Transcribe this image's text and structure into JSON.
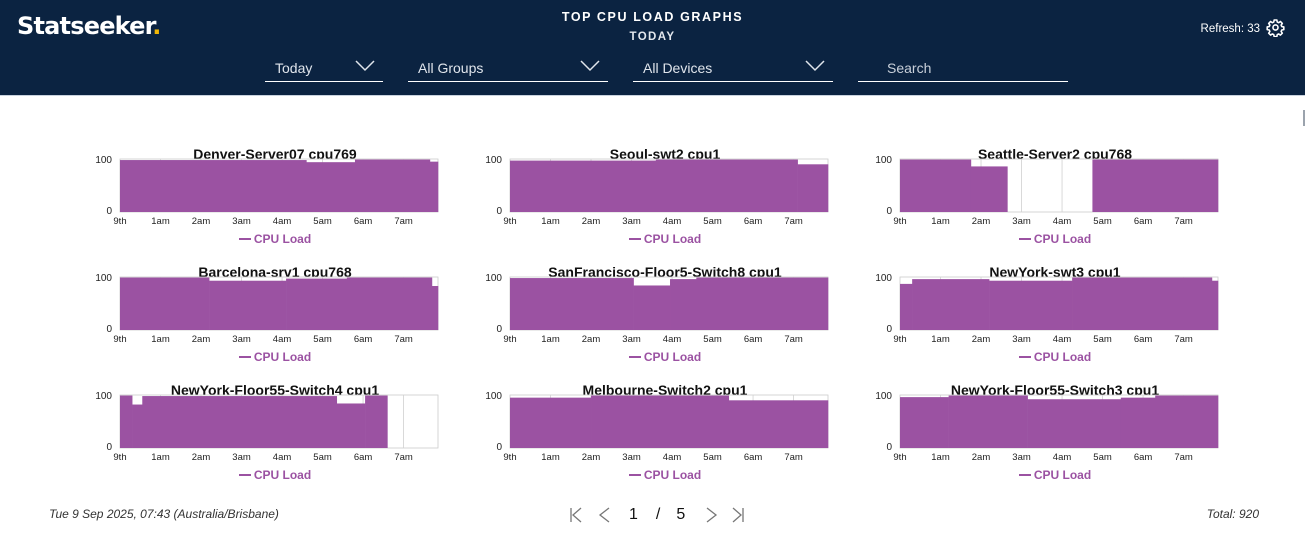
{
  "header": {
    "logo_text": "Statseeker",
    "logo_dot": ".",
    "title": "TOP CPU LOAD GRAPHS",
    "subtitle": "TODAY",
    "refresh_label": "Refresh: 33",
    "gear_icon": "gear-icon"
  },
  "filters": {
    "time_range": {
      "value": "Today",
      "icon": "chevron-down-icon"
    },
    "groups": {
      "value": "All Groups",
      "icon": "chevron-down-icon"
    },
    "devices": {
      "value": "All Devices",
      "icon": "chevron-down-icon"
    },
    "search": {
      "placeholder": "Search",
      "value": ""
    }
  },
  "colors": {
    "header_bg": "#0b2341",
    "accent_dot": "#f2b705",
    "series": "#9b52a2",
    "grid": "#d0d0d0"
  },
  "footer": {
    "timestamp": "Tue 9 Sep 2025, 07:43 (Australia/Brisbane)",
    "page_current": "1",
    "page_sep": "/",
    "page_total": "5",
    "total": "Total: 920",
    "icons": [
      "first-page-icon",
      "prev-page-icon",
      "next-page-icon",
      "last-page-icon"
    ]
  },
  "chart_data": [
    {
      "type": "area",
      "title": "Denver-Server07 cpu769",
      "legend": "CPU Load",
      "x_ticks": [
        "9th",
        "1am",
        "2am",
        "3am",
        "4am",
        "5am",
        "6am",
        "7am"
      ],
      "y_ticks": [
        "0",
        "100"
      ],
      "xlim": [
        0,
        7.85
      ],
      "ylim": [
        0,
        100
      ],
      "segments": [
        {
          "from": 0,
          "to": 4.6,
          "value": 98
        },
        {
          "from": 4.6,
          "to": 5.8,
          "value": 94
        },
        {
          "from": 5.8,
          "to": 7.65,
          "value": 99
        },
        {
          "from": 7.65,
          "to": 7.85,
          "value": 95
        }
      ]
    },
    {
      "type": "area",
      "title": "Seoul-swt2 cpu1",
      "legend": "CPU Load",
      "x_ticks": [
        "9th",
        "1am",
        "2am",
        "3am",
        "4am",
        "5am",
        "6am",
        "7am"
      ],
      "y_ticks": [
        "0",
        "100"
      ],
      "xlim": [
        0,
        7.85
      ],
      "ylim": [
        0,
        100
      ],
      "segments": [
        {
          "from": 0,
          "to": 3.6,
          "value": 97
        },
        {
          "from": 3.6,
          "to": 7.1,
          "value": 99
        },
        {
          "from": 7.1,
          "to": 7.85,
          "value": 90
        }
      ]
    },
    {
      "type": "area",
      "title": "Seattle-Server2 cpu768",
      "legend": "CPU Load",
      "x_ticks": [
        "9th",
        "1am",
        "2am",
        "3am",
        "4am",
        "5am",
        "6am",
        "7am"
      ],
      "y_ticks": [
        "0",
        "100"
      ],
      "xlim": [
        0,
        7.85
      ],
      "ylim": [
        0,
        100
      ],
      "segments": [
        {
          "from": 0,
          "to": 1.75,
          "value": 99
        },
        {
          "from": 1.75,
          "to": 2.65,
          "value": 86
        },
        {
          "from": 2.65,
          "to": 4.75,
          "value": null
        },
        {
          "from": 4.75,
          "to": 7.85,
          "value": 99
        }
      ]
    },
    {
      "type": "area",
      "title": "Barcelona-srv1 cpu768",
      "legend": "CPU Load",
      "x_ticks": [
        "9th",
        "1am",
        "2am",
        "3am",
        "4am",
        "5am",
        "6am",
        "7am"
      ],
      "y_ticks": [
        "0",
        "100"
      ],
      "xlim": [
        0,
        7.85
      ],
      "ylim": [
        0,
        100
      ],
      "segments": [
        {
          "from": 0,
          "to": 2.2,
          "value": 99
        },
        {
          "from": 2.2,
          "to": 4.1,
          "value": 93
        },
        {
          "from": 4.1,
          "to": 5.6,
          "value": 97
        },
        {
          "from": 5.6,
          "to": 7.7,
          "value": 99
        },
        {
          "from": 7.7,
          "to": 7.85,
          "value": 83
        }
      ]
    },
    {
      "type": "area",
      "title": "SanFrancisco-Floor5-Switch8 cpu1",
      "legend": "CPU Load",
      "x_ticks": [
        "9th",
        "1am",
        "2am",
        "3am",
        "4am",
        "5am",
        "6am",
        "7am"
      ],
      "y_ticks": [
        "0",
        "100"
      ],
      "xlim": [
        0,
        7.85
      ],
      "ylim": [
        0,
        100
      ],
      "segments": [
        {
          "from": 0,
          "to": 3.05,
          "value": 98
        },
        {
          "from": 3.05,
          "to": 3.95,
          "value": 84
        },
        {
          "from": 3.95,
          "to": 4.6,
          "value": 96
        },
        {
          "from": 4.6,
          "to": 7.85,
          "value": 99
        }
      ]
    },
    {
      "type": "area",
      "title": "NewYork-swt3 cpu1",
      "legend": "CPU Load",
      "x_ticks": [
        "9th",
        "1am",
        "2am",
        "3am",
        "4am",
        "5am",
        "6am",
        "7am"
      ],
      "y_ticks": [
        "0",
        "100"
      ],
      "xlim": [
        0,
        7.85
      ],
      "ylim": [
        0,
        100
      ],
      "segments": [
        {
          "from": 0,
          "to": 0.3,
          "value": 87
        },
        {
          "from": 0.3,
          "to": 2.2,
          "value": 96
        },
        {
          "from": 2.2,
          "to": 4.25,
          "value": 93
        },
        {
          "from": 4.25,
          "to": 7.7,
          "value": 99
        },
        {
          "from": 7.7,
          "to": 7.85,
          "value": 93
        }
      ]
    },
    {
      "type": "area",
      "title": "NewYork-Floor55-Switch4 cpu1",
      "legend": "CPU Load",
      "x_ticks": [
        "9th",
        "1am",
        "2am",
        "3am",
        "4am",
        "5am",
        "6am",
        "7am"
      ],
      "y_ticks": [
        "0",
        "100"
      ],
      "xlim": [
        0,
        7.85
      ],
      "ylim": [
        0,
        100
      ],
      "segments": [
        {
          "from": 0,
          "to": 0.3,
          "value": 99
        },
        {
          "from": 0.3,
          "to": 0.55,
          "value": 82
        },
        {
          "from": 0.55,
          "to": 5.35,
          "value": 98
        },
        {
          "from": 5.35,
          "to": 6.05,
          "value": 84
        },
        {
          "from": 6.05,
          "to": 6.6,
          "value": 99
        },
        {
          "from": 6.6,
          "to": 7.85,
          "value": null
        }
      ]
    },
    {
      "type": "area",
      "title": "Melbourne-Switch2 cpu1",
      "legend": "CPU Load",
      "x_ticks": [
        "9th",
        "1am",
        "2am",
        "3am",
        "4am",
        "5am",
        "6am",
        "7am"
      ],
      "y_ticks": [
        "0",
        "100"
      ],
      "xlim": [
        0,
        7.85
      ],
      "ylim": [
        0,
        100
      ],
      "segments": [
        {
          "from": 0,
          "to": 2.0,
          "value": 95
        },
        {
          "from": 2.0,
          "to": 5.4,
          "value": 99
        },
        {
          "from": 5.4,
          "to": 7.85,
          "value": 90
        }
      ]
    },
    {
      "type": "area",
      "title": "NewYork-Floor55-Switch3 cpu1",
      "legend": "CPU Load",
      "x_ticks": [
        "9th",
        "1am",
        "2am",
        "3am",
        "4am",
        "5am",
        "6am",
        "7am"
      ],
      "y_ticks": [
        "0",
        "100"
      ],
      "xlim": [
        0,
        7.85
      ],
      "ylim": [
        0,
        100
      ],
      "segments": [
        {
          "from": 0,
          "to": 1.2,
          "value": 96
        },
        {
          "from": 1.2,
          "to": 3.15,
          "value": 99
        },
        {
          "from": 3.15,
          "to": 5.45,
          "value": 92
        },
        {
          "from": 5.45,
          "to": 6.3,
          "value": 95
        },
        {
          "from": 6.3,
          "to": 7.85,
          "value": 99
        }
      ]
    }
  ]
}
